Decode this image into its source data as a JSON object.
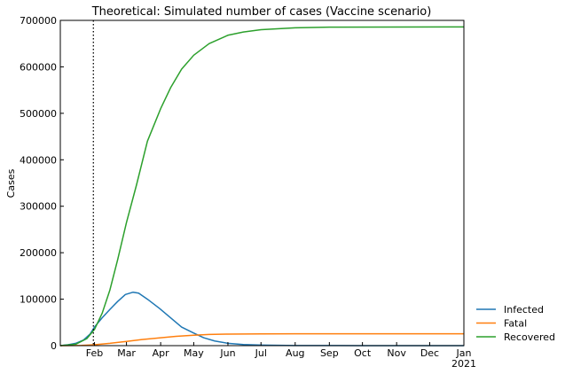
{
  "chart_data": {
    "type": "line",
    "title": "Theoretical: Simulated number of cases (Vaccine scenario)",
    "xlabel": "",
    "ylabel": "Cases",
    "x_range": [
      "2020-01-01",
      "2021-01-01"
    ],
    "ylim": [
      0,
      700000
    ],
    "grid": false,
    "legend_placement": "outside-right-bottom",
    "y_ticks": [
      0,
      100000,
      200000,
      300000,
      400000,
      500000,
      600000,
      700000
    ],
    "y_tick_labels": [
      "0",
      "100000",
      "200000",
      "300000",
      "400000",
      "500000",
      "600000",
      "700000"
    ],
    "x_ticks": [
      {
        "date": "2020-02-01",
        "label": "Feb"
      },
      {
        "date": "2020-03-01",
        "label": "Mar"
      },
      {
        "date": "2020-04-01",
        "label": "Apr"
      },
      {
        "date": "2020-05-01",
        "label": "May"
      },
      {
        "date": "2020-06-01",
        "label": "Jun"
      },
      {
        "date": "2020-07-01",
        "label": "Jul"
      },
      {
        "date": "2020-08-01",
        "label": "Aug"
      },
      {
        "date": "2020-09-01",
        "label": "Sep"
      },
      {
        "date": "2020-10-01",
        "label": "Oct"
      },
      {
        "date": "2020-11-01",
        "label": "Nov"
      },
      {
        "date": "2020-12-01",
        "label": "Dec"
      },
      {
        "date": "2021-01-01",
        "label": "Jan"
      }
    ],
    "x_year_label": "2021",
    "vline": {
      "date": "2020-01-31",
      "style": "dotted",
      "color": "#000000"
    },
    "series": [
      {
        "name": "Infected",
        "color": "#1f77b4",
        "points": [
          [
            "2020-01-01",
            0
          ],
          [
            "2020-01-08",
            2000
          ],
          [
            "2020-01-15",
            5000
          ],
          [
            "2020-01-22",
            12000
          ],
          [
            "2020-01-28",
            25000
          ],
          [
            "2020-02-01",
            40000
          ],
          [
            "2020-02-08",
            60000
          ],
          [
            "2020-02-15",
            78000
          ],
          [
            "2020-02-22",
            95000
          ],
          [
            "2020-02-29",
            110000
          ],
          [
            "2020-03-07",
            115000
          ],
          [
            "2020-03-12",
            113000
          ],
          [
            "2020-03-20",
            100000
          ],
          [
            "2020-03-31",
            80000
          ],
          [
            "2020-04-10",
            60000
          ],
          [
            "2020-04-20",
            40000
          ],
          [
            "2020-05-01",
            27000
          ],
          [
            "2020-05-10",
            17000
          ],
          [
            "2020-05-20",
            10000
          ],
          [
            "2020-06-01",
            5000
          ],
          [
            "2020-06-15",
            2500
          ],
          [
            "2020-07-01",
            1200
          ],
          [
            "2020-08-01",
            300
          ],
          [
            "2020-10-01",
            50
          ],
          [
            "2021-01-01",
            0
          ]
        ]
      },
      {
        "name": "Fatal",
        "color": "#ff7f0e",
        "points": [
          [
            "2020-01-01",
            0
          ],
          [
            "2020-01-20",
            500
          ],
          [
            "2020-02-01",
            2000
          ],
          [
            "2020-02-15",
            5000
          ],
          [
            "2020-03-01",
            9000
          ],
          [
            "2020-03-15",
            13000
          ],
          [
            "2020-04-01",
            17000
          ],
          [
            "2020-04-15",
            20000
          ],
          [
            "2020-05-01",
            22500
          ],
          [
            "2020-05-15",
            24000
          ],
          [
            "2020-06-01",
            24800
          ],
          [
            "2020-07-01",
            25300
          ],
          [
            "2020-08-01",
            25500
          ],
          [
            "2021-01-01",
            25600
          ]
        ]
      },
      {
        "name": "Recovered",
        "color": "#2ca02c",
        "points": [
          [
            "2020-01-01",
            0
          ],
          [
            "2020-01-15",
            3000
          ],
          [
            "2020-01-25",
            15000
          ],
          [
            "2020-02-01",
            35000
          ],
          [
            "2020-02-08",
            70000
          ],
          [
            "2020-02-15",
            120000
          ],
          [
            "2020-02-22",
            185000
          ],
          [
            "2020-03-01",
            265000
          ],
          [
            "2020-03-10",
            345000
          ],
          [
            "2020-03-20",
            440000
          ],
          [
            "2020-04-01",
            510000
          ],
          [
            "2020-04-10",
            555000
          ],
          [
            "2020-04-20",
            595000
          ],
          [
            "2020-05-01",
            625000
          ],
          [
            "2020-05-15",
            650000
          ],
          [
            "2020-06-01",
            668000
          ],
          [
            "2020-06-15",
            675000
          ],
          [
            "2020-07-01",
            680000
          ],
          [
            "2020-08-01",
            684000
          ],
          [
            "2020-09-01",
            685500
          ],
          [
            "2021-01-01",
            686000
          ]
        ]
      }
    ]
  }
}
